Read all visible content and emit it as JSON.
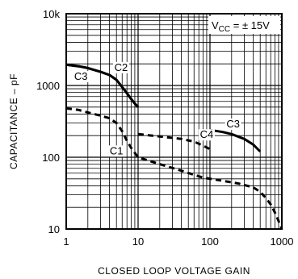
{
  "chart_data": {
    "type": "line",
    "title": "",
    "xlabel": "CLOSED LOOP VOLTAGE GAIN",
    "ylabel": "CAPACITANCE – pF",
    "x_scale": "log",
    "y_scale": "log",
    "xlim": [
      1,
      1000
    ],
    "ylim": [
      10,
      10000
    ],
    "grid": true,
    "x_ticks": [
      {
        "value": 1,
        "label": "1"
      },
      {
        "value": 10,
        "label": "10"
      },
      {
        "value": 100,
        "label": "100"
      },
      {
        "value": 1000,
        "label": "1000"
      }
    ],
    "y_ticks": [
      {
        "value": 10,
        "label": "10"
      },
      {
        "value": 100,
        "label": "100"
      },
      {
        "value": 1000,
        "label": "1000"
      },
      {
        "value": 10000,
        "label": "10k"
      }
    ],
    "annotation": {
      "prefix": "V",
      "subscript": "CC",
      "suffix": " = ± 15V"
    },
    "series": [
      {
        "name": "C3",
        "style": "solid",
        "points": [
          [
            1,
            1950
          ],
          [
            1.5,
            1850
          ],
          [
            2,
            1750
          ],
          [
            3,
            1550
          ],
          [
            4,
            1400
          ],
          [
            5,
            1200
          ],
          [
            6,
            950
          ],
          [
            7,
            780
          ],
          [
            8,
            650
          ],
          [
            9,
            560
          ],
          [
            10,
            500
          ]
        ]
      },
      {
        "name": "C2",
        "style": "solid",
        "points": [
          [
            1,
            1950
          ],
          [
            1.5,
            1850
          ],
          [
            2,
            1750
          ],
          [
            3,
            1550
          ],
          [
            4,
            1400
          ],
          [
            5,
            1200
          ],
          [
            6,
            950
          ],
          [
            7,
            780
          ],
          [
            8,
            650
          ],
          [
            9,
            560
          ],
          [
            10,
            500
          ]
        ]
      },
      {
        "name": "C1",
        "style": "dashed",
        "points": [
          [
            1,
            480
          ],
          [
            1.5,
            455
          ],
          [
            2,
            420
          ],
          [
            3,
            380
          ],
          [
            4,
            350
          ],
          [
            5,
            300
          ],
          [
            6,
            230
          ],
          [
            7,
            170
          ],
          [
            8,
            135
          ],
          [
            9,
            115
          ],
          [
            10,
            100
          ],
          [
            20,
            80
          ],
          [
            40,
            65
          ],
          [
            80,
            52
          ],
          [
            150,
            47
          ],
          [
            250,
            43
          ],
          [
            400,
            38
          ],
          [
            500,
            33
          ],
          [
            600,
            27
          ],
          [
            700,
            22
          ],
          [
            800,
            17
          ],
          [
            900,
            13
          ],
          [
            1000,
            10
          ]
        ]
      },
      {
        "name": "C4",
        "style": "dashed",
        "points": [
          [
            10,
            210
          ],
          [
            20,
            195
          ],
          [
            40,
            180
          ],
          [
            60,
            165
          ],
          [
            80,
            145
          ],
          [
            100,
            130
          ]
        ]
      },
      {
        "name": "C3",
        "style": "solid",
        "points": [
          [
            100,
            240
          ],
          [
            150,
            225
          ],
          [
            200,
            210
          ],
          [
            300,
            180
          ],
          [
            400,
            150
          ],
          [
            500,
            120
          ]
        ]
      }
    ],
    "curve_labels": [
      {
        "text": "C3",
        "x": 1.6,
        "y": 1200
      },
      {
        "text": "C2",
        "x": 5.8,
        "y": 1600
      },
      {
        "text": "C1",
        "x": 5.0,
        "y": 110
      },
      {
        "text": "C4",
        "x": 90,
        "y": 185
      },
      {
        "text": "C3",
        "x": 210,
        "y": 260
      }
    ]
  }
}
